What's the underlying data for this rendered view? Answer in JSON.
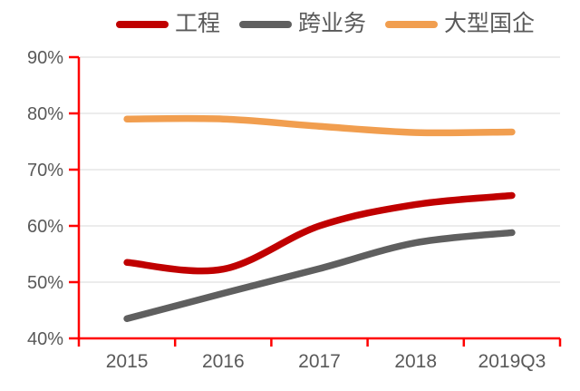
{
  "chart_data": {
    "type": "line",
    "title": "",
    "categories": [
      "2015",
      "2016",
      "2017",
      "2018",
      "2019Q3"
    ],
    "series": [
      {
        "name": "工程",
        "color": "#C00000",
        "values": [
          53.5,
          52.3,
          60.0,
          63.8,
          65.4
        ]
      },
      {
        "name": "跨业务",
        "color": "#5F5F5F",
        "values": [
          43.5,
          48.0,
          52.4,
          57.0,
          58.8
        ]
      },
      {
        "name": "大型国企",
        "color": "#F19E4F",
        "values": [
          79.0,
          79.0,
          77.7,
          76.6,
          76.7
        ]
      }
    ],
    "ylim": [
      40,
      90
    ],
    "ytick_step": 10,
    "ytick_labels": [
      "40%",
      "50%",
      "60%",
      "70%",
      "80%",
      "90%"
    ],
    "grid": true,
    "smooth": true,
    "legend_position": "top",
    "axis_color": "#FF0000",
    "gridline_color": "#D9D9D9",
    "label_color": "#595959"
  }
}
